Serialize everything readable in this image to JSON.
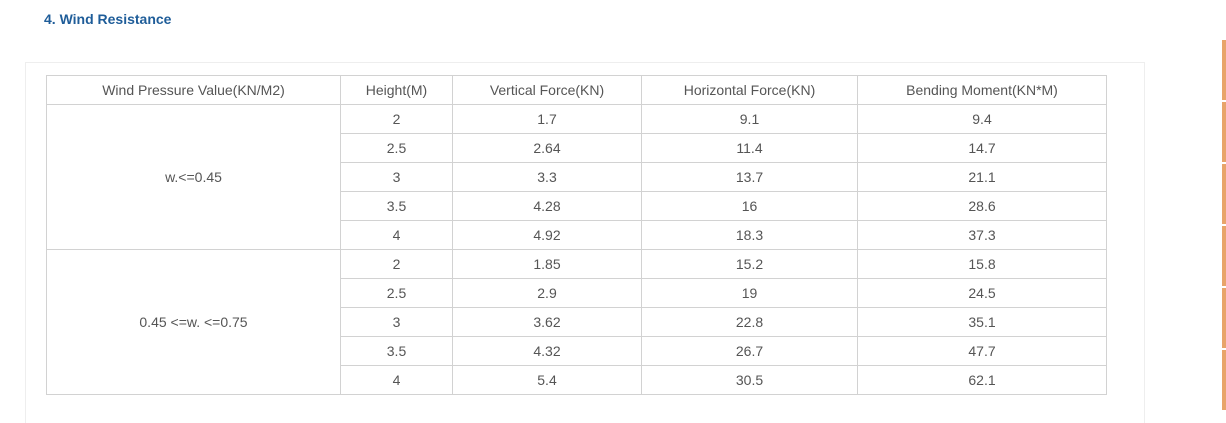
{
  "heading": "4. Wind Resistance",
  "table": {
    "header": [
      "Wind Pressure Value(KN/M2)",
      "Height(M)",
      "Vertical Force(KN)",
      "Horizontal Force(KN)",
      "Bending Moment(KN*M)"
    ],
    "groups": [
      {
        "label": "w.<=0.45",
        "rows": [
          [
            "2",
            "1.7",
            "9.1",
            "9.4"
          ],
          [
            "2.5",
            "2.64",
            "11.4",
            "14.7"
          ],
          [
            "3",
            "3.3",
            "13.7",
            "21.1"
          ],
          [
            "3.5",
            "4.28",
            "16",
            "28.6"
          ],
          [
            "4",
            "4.92",
            "18.3",
            "37.3"
          ]
        ]
      },
      {
        "label": "0.45 <=w. <=0.75",
        "rows": [
          [
            "2",
            "1.85",
            "15.2",
            "15.8"
          ],
          [
            "2.5",
            "2.9",
            "19",
            "24.5"
          ],
          [
            "3",
            "3.62",
            "22.8",
            "35.1"
          ],
          [
            "3.5",
            "4.32",
            "26.7",
            "47.7"
          ],
          [
            "4",
            "5.4",
            "30.5",
            "62.1"
          ]
        ]
      }
    ]
  }
}
